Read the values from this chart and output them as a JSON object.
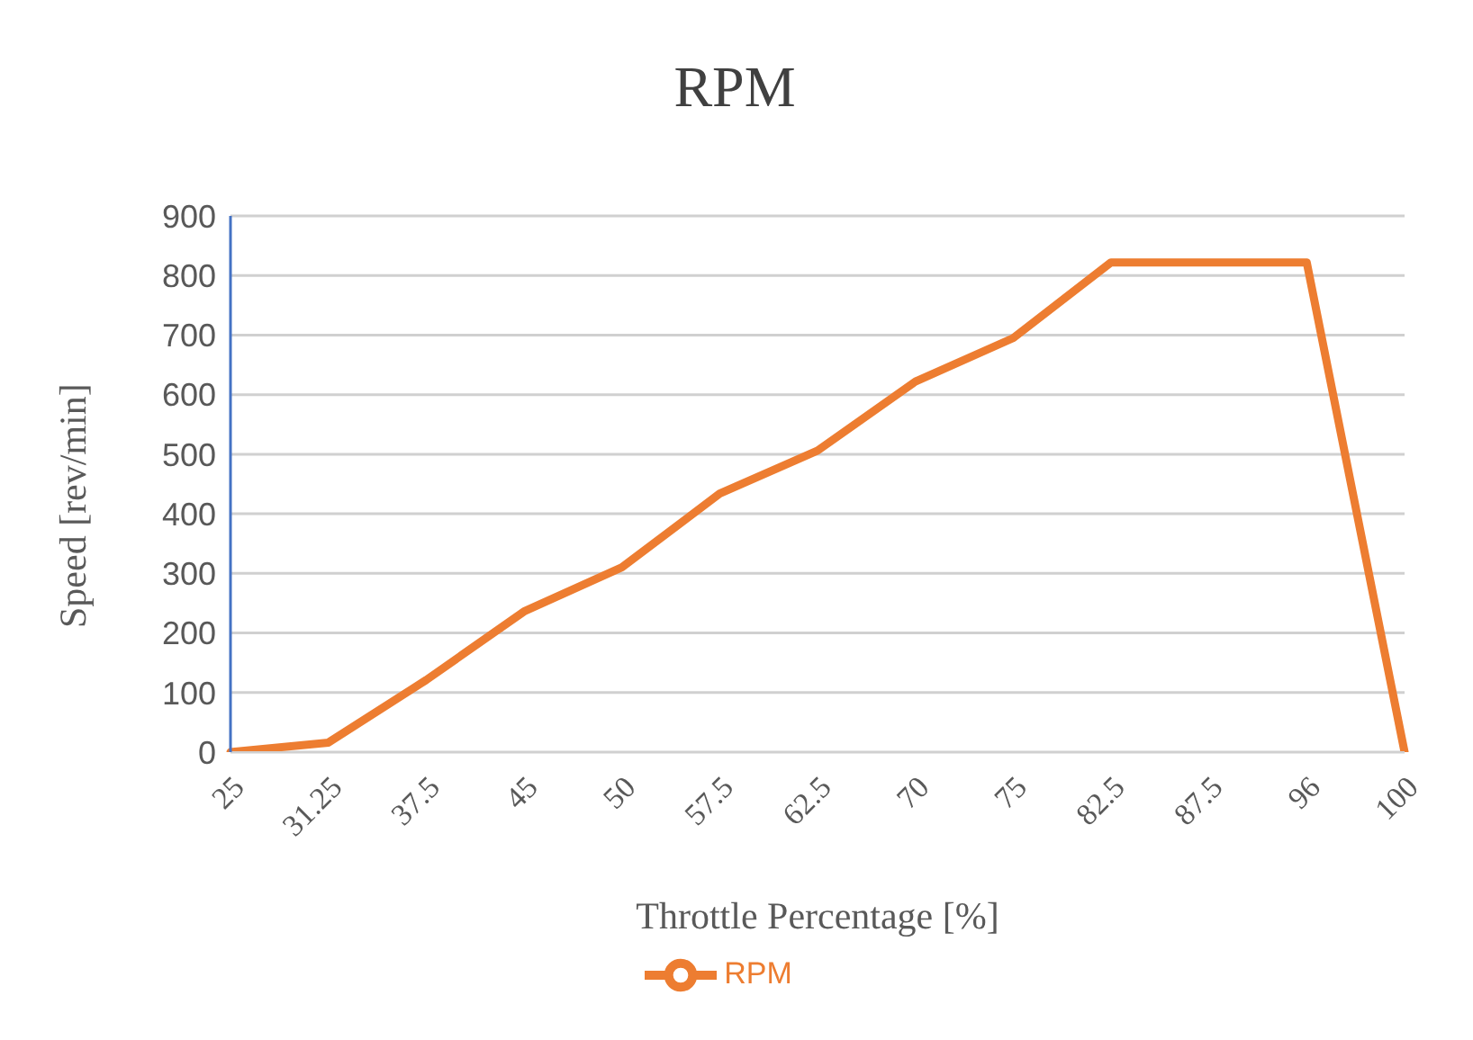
{
  "chart_data": {
    "type": "line",
    "title": "RPM",
    "xlabel": "Throttle Percentage [%]",
    "ylabel": "Speed [rev/min]",
    "categories": [
      "25",
      "31.25",
      "37.5",
      "45",
      "50",
      "57.5",
      "62.5",
      "70",
      "75",
      "82.5",
      "87.5",
      "96",
      "100"
    ],
    "series": [
      {
        "name": "RPM",
        "color": "#ed7d31",
        "values": [
          0,
          16,
          121,
          236,
          310,
          434,
          506,
          622,
          695,
          822,
          822,
          822,
          0
        ]
      }
    ],
    "ylim": [
      0,
      900
    ],
    "yticks": [
      0,
      100,
      200,
      300,
      400,
      500,
      600,
      700,
      800,
      900
    ],
    "grid": "y",
    "legend": "bottom",
    "marker": "none",
    "line_style": "solid"
  }
}
